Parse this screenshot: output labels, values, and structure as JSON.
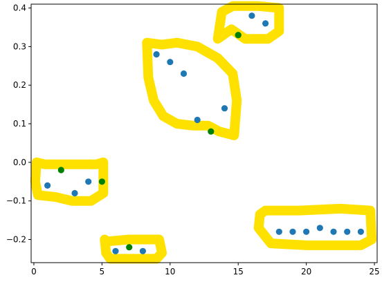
{
  "chart_data": {
    "type": "scatter",
    "title": "",
    "xlabel": "",
    "ylabel": "",
    "xlim": [
      -0.2,
      25.2
    ],
    "ylim": [
      -0.26,
      0.41
    ],
    "x_ticks": [
      0,
      5,
      10,
      15,
      20,
      25
    ],
    "x_tick_labels": [
      "0",
      "5",
      "10",
      "15",
      "20",
      "25"
    ],
    "y_ticks": [
      -0.2,
      -0.1,
      0.0,
      0.1,
      0.2,
      0.3,
      0.4
    ],
    "y_tick_labels": [
      "−0.2",
      "−0.1",
      "0.0",
      "0.1",
      "0.2",
      "0.3",
      "0.4"
    ],
    "grid": false,
    "legend": "none",
    "series": [
      {
        "color": "#1f77b4",
        "points": [
          {
            "x": 1,
            "y": -0.06
          },
          {
            "x": 3,
            "y": -0.08
          },
          {
            "x": 4,
            "y": -0.05
          },
          {
            "x": 6,
            "y": -0.23
          },
          {
            "x": 8,
            "y": -0.23
          },
          {
            "x": 9,
            "y": 0.28
          },
          {
            "x": 10,
            "y": 0.26
          },
          {
            "x": 11,
            "y": 0.23
          },
          {
            "x": 12,
            "y": 0.11
          },
          {
            "x": 14,
            "y": 0.14
          },
          {
            "x": 15,
            "y": 0.33
          },
          {
            "x": 16,
            "y": 0.38
          },
          {
            "x": 17,
            "y": 0.36
          },
          {
            "x": 18,
            "y": -0.18
          },
          {
            "x": 19,
            "y": -0.18
          },
          {
            "x": 20,
            "y": -0.18
          },
          {
            "x": 21,
            "y": -0.17
          },
          {
            "x": 22,
            "y": -0.18
          },
          {
            "x": 23,
            "y": -0.18
          },
          {
            "x": 24,
            "y": -0.18
          }
        ]
      },
      {
        "color": "#008000",
        "points": [
          {
            "x": 2,
            "y": -0.02
          },
          {
            "x": 5,
            "y": -0.05
          },
          {
            "x": 7,
            "y": -0.22
          },
          {
            "x": 13,
            "y": 0.08
          },
          {
            "x": 15,
            "y": 0.33
          }
        ]
      }
    ],
    "highlight_color": "#ffe100",
    "highlights": [
      {
        "points": [
          [
            0.2,
            -0.0
          ],
          [
            0.8,
            -0.005
          ],
          [
            2.5,
            -0.005
          ],
          [
            4.6,
            -0.005
          ],
          [
            5.1,
            0.0
          ],
          [
            5.1,
            -0.08
          ],
          [
            4.2,
            -0.1
          ],
          [
            2.8,
            -0.1
          ],
          [
            1.6,
            -0.09
          ],
          [
            0.3,
            -0.085
          ],
          [
            0.1,
            -0.05
          ],
          [
            0.2,
            -0.0
          ]
        ]
      },
      {
        "points": [
          [
            5.2,
            -0.2
          ],
          [
            5.4,
            -0.205
          ],
          [
            7.0,
            -0.2
          ],
          [
            9.2,
            -0.2
          ],
          [
            9.4,
            -0.235
          ],
          [
            9.0,
            -0.25
          ],
          [
            5.6,
            -0.25
          ],
          [
            5.3,
            -0.235
          ],
          [
            5.2,
            -0.2
          ]
        ]
      },
      {
        "points": [
          [
            8.3,
            0.31
          ],
          [
            8.4,
            0.22
          ],
          [
            8.8,
            0.16
          ],
          [
            9.5,
            0.12
          ],
          [
            10.5,
            0.1
          ],
          [
            11.7,
            0.095
          ],
          [
            12.8,
            0.095
          ],
          [
            13.6,
            0.08
          ],
          [
            14.7,
            0.07
          ],
          [
            14.9,
            0.16
          ],
          [
            14.6,
            0.23
          ],
          [
            13.5,
            0.27
          ],
          [
            12.0,
            0.3
          ],
          [
            10.5,
            0.31
          ],
          [
            9.4,
            0.305
          ],
          [
            8.3,
            0.31
          ]
        ]
      },
      {
        "points": [
          [
            13.5,
            0.32
          ],
          [
            13.8,
            0.39
          ],
          [
            14.6,
            0.405
          ],
          [
            16.5,
            0.405
          ],
          [
            18.0,
            0.4
          ],
          [
            18.0,
            0.34
          ],
          [
            17.2,
            0.32
          ],
          [
            15.5,
            0.32
          ],
          [
            14.5,
            0.345
          ],
          [
            13.5,
            0.32
          ]
        ]
      },
      {
        "points": [
          [
            16.6,
            -0.135
          ],
          [
            17.0,
            -0.125
          ],
          [
            19.5,
            -0.125
          ],
          [
            22.5,
            -0.12
          ],
          [
            24.7,
            -0.125
          ],
          [
            24.8,
            -0.2
          ],
          [
            24.0,
            -0.215
          ],
          [
            20.0,
            -0.215
          ],
          [
            17.4,
            -0.21
          ],
          [
            16.5,
            -0.17
          ],
          [
            16.6,
            -0.135
          ]
        ]
      }
    ]
  }
}
